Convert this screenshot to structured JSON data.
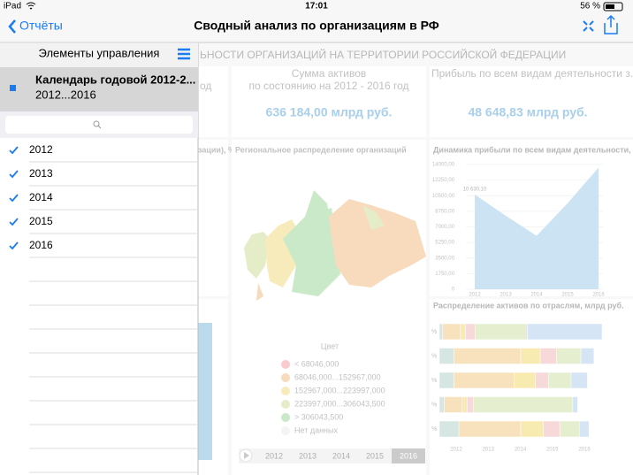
{
  "status_bar": {
    "device": "iPad",
    "time": "17:01",
    "battery": "56 %"
  },
  "nav_bar": {
    "back": "Отчёты",
    "title": "Сводный анализ по организациям в РФ"
  },
  "panel": {
    "title": "Элементы управления",
    "selected": {
      "title": "Календарь годовой 2012-2...",
      "subtitle": "2012...2016"
    },
    "items": [
      "2012",
      "2013",
      "2014",
      "2015",
      "2016"
    ]
  },
  "dashboard": {
    "header": "ЬНОСТИ ОРГАНИЗАЦИЙ НА ТЕРРИТОРИИ РОССИЙСКОЙ ФЕДЕРАЦИИ",
    "cards": [
      {
        "title": "од"
      },
      {
        "title": "Сумма активов",
        "subtitle": "по состоянию на 2012 - 2016 год",
        "value": "636 184,00 млрд руб."
      },
      {
        "title": "Прибыль по всем видам деятельности з...",
        "value": "48 648,83 млрд руб."
      }
    ],
    "left_panel_title": "зации), %",
    "map": {
      "title": "Региональное распределение организаций",
      "legend_title": "Цвет",
      "legend": [
        {
          "label": "< 68046,000",
          "color": "#f6aab0"
        },
        {
          "label": "68046,000...152967,000",
          "color": "#f2c490"
        },
        {
          "label": "152967,000...223997,000",
          "color": "#f4df8e"
        },
        {
          "label": "223997,000...306043,500",
          "color": "#d3e2a4"
        },
        {
          "label": "> 306043,500",
          "color": "#a6dba4"
        },
        {
          "label": "Нет данных",
          "color": "#eeeeee"
        }
      ],
      "timeline": [
        "2012",
        "2013",
        "2014",
        "2015",
        "2016"
      ],
      "timeline_selected": 4
    }
  },
  "chart_data": [
    {
      "type": "area",
      "title": "Динамика прибыли по всем видам деятельности,",
      "categories": [
        "2012",
        "2013",
        "2014",
        "2015",
        "2016"
      ],
      "values": [
        10630.1,
        8250,
        6000,
        9650,
        13650
      ],
      "value_labels": [
        "10 630,10",
        null,
        null,
        null,
        null
      ],
      "color": "#a9d2ea",
      "ylim": [
        0,
        14000
      ],
      "yticks": [
        0,
        {
          "value": 1750,
          "label": "1750,00"
        },
        {
          "value": 3500,
          "label": "3500,00"
        },
        {
          "value": 5250,
          "label": "5250,00"
        },
        {
          "value": 7000,
          "label": "7000,00"
        },
        {
          "value": 8750,
          "label": "8750,00"
        },
        {
          "value": 10500,
          "label": "10500,00"
        },
        {
          "value": 12250,
          "label": "12250,00"
        },
        {
          "value": 14000,
          "label": "14000,00"
        }
      ]
    },
    {
      "type": "stacked_bar_h",
      "title": "Распределение активов по отраслям, млрд руб.",
      "categories": [
        "%",
        "%",
        "%",
        "%",
        "%"
      ],
      "xlim": [
        0,
        100
      ],
      "x_labels": [
        "2012",
        "2013",
        "2014",
        "2015",
        "2016"
      ],
      "series": [
        {
          "color": "#bcd6d2",
          "values": [
            2,
            9,
            9,
            3,
            12
          ]
        },
        {
          "color": "#f3cf92",
          "values": [
            11,
            41,
            37,
            11,
            38
          ]
        },
        {
          "color": "#f5df7e",
          "values": [
            3,
            12,
            13,
            3,
            14
          ]
        },
        {
          "color": "#f2c0c2",
          "values": [
            6,
            10,
            8,
            4,
            10
          ]
        },
        {
          "color": "#d5e5b2",
          "values": [
            32,
            15,
            14,
            61,
            12
          ]
        },
        {
          "color": "#bad4ef",
          "values": [
            46,
            8,
            10,
            3,
            6
          ]
        }
      ]
    }
  ]
}
